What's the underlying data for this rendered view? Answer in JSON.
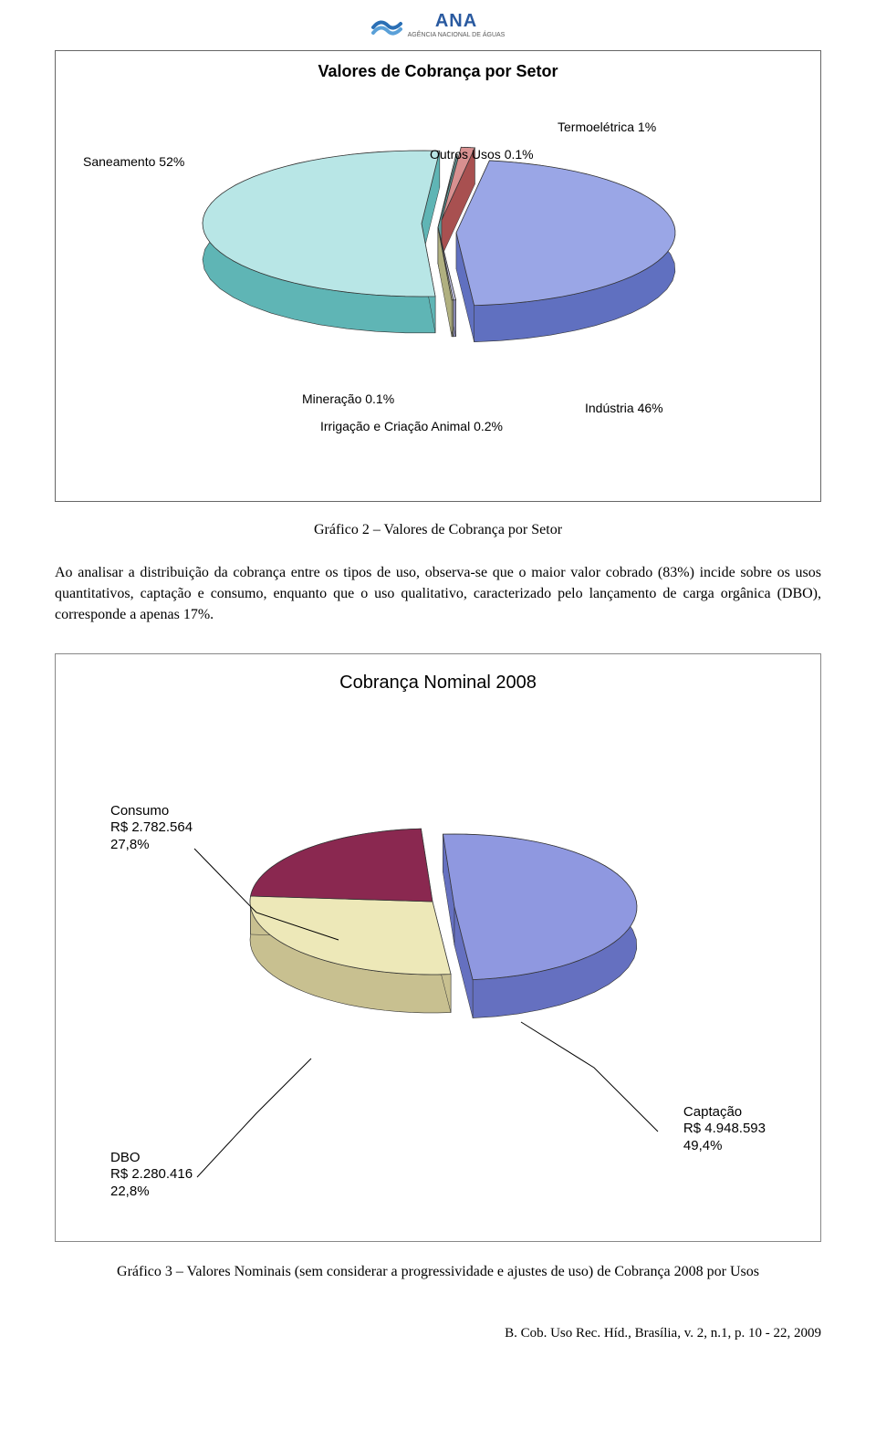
{
  "logo": {
    "name": "ANA",
    "sub": "AGÊNCIA NACIONAL DE ÁGUAS"
  },
  "chart1": {
    "type": "pie",
    "title": "Valores de Cobrança por Setor",
    "background_color": "#ffffff",
    "slices": [
      {
        "label": "Saneamento 52%",
        "value": 52,
        "color_top": "#b8e6e6",
        "color_side": "#5fb5b5"
      },
      {
        "label": "Outros Usos 0.1%",
        "value": 0.1,
        "color_top": "#a8d8d8",
        "color_side": "#5fa0a0"
      },
      {
        "label": "Termoelétrica 1%",
        "value": 1,
        "color_top": "#d89090",
        "color_side": "#a85050"
      },
      {
        "label": "Indústria 46%",
        "value": 46,
        "color_top": "#9aa6e6",
        "color_side": "#6070c0"
      },
      {
        "label": "Irrigação e Criação Animal 0.2%",
        "value": 0.2,
        "color_top": "#c0c0e0",
        "color_side": "#8888b0"
      },
      {
        "label": "Mineração 0.1%",
        "value": 0.1,
        "color_top": "#e0e0b0",
        "color_side": "#b0b080"
      }
    ],
    "label_fontsize": 14,
    "title_fontsize": 18
  },
  "caption1": "Gráfico 2 – Valores de Cobrança por Setor",
  "paragraph": "Ao analisar a distribuição da cobrança entre os tipos de uso, observa-se que o maior valor cobrado (83%) incide sobre os usos quantitativos, captação e consumo, enquanto que o uso qualitativo, caracterizado pelo lançamento de carga orgânica (DBO), corresponde a apenas 17%.",
  "chart2": {
    "type": "pie",
    "title": "Cobrança Nominal 2008",
    "background_color": "#ffffff",
    "slices": [
      {
        "key": "consumo",
        "label": "Consumo",
        "amount": "R$ 2.782.564",
        "pct": "27,8%",
        "value": 27.8,
        "color_top": "#ede8b8",
        "color_side": "#c8c090"
      },
      {
        "key": "captacao",
        "label": "Captação",
        "amount": "R$ 4.948.593",
        "pct": "49,4%",
        "value": 49.4,
        "color_top": "#8f98e0",
        "color_side": "#6570c0"
      },
      {
        "key": "dbo",
        "label": "DBO",
        "amount": "R$ 2.280.416",
        "pct": "22,8%",
        "value": 22.8,
        "color_top": "#8a2850",
        "color_side": "#601838"
      }
    ],
    "label_fontsize": 15,
    "title_fontsize": 20
  },
  "caption2": "Gráfico  3 – Valores Nominais (sem considerar a progressividade e ajustes de uso) de Cobrança 2008 por Usos",
  "footer": "B. Cob. Uso Rec. Híd., Brasília, v. 2, n.1, p. 10 - 22, 2009"
}
